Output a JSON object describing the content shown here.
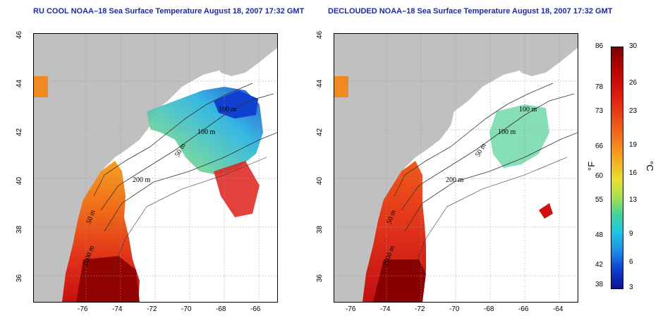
{
  "panels": {
    "left": {
      "title": "RU COOL NOAA–18 Sea Surface Temperature August 18, 2007 17:32 GMT",
      "contour_labels": [
        "100 m",
        "100 m",
        "50 m",
        "200 m",
        "50 m",
        "2000 m"
      ]
    },
    "right": {
      "title": "DECLOUDED NOAA–18 Sea Surface Temperature August 18, 2007 17:32 GMT",
      "contour_labels": [
        "100 m",
        "100 m",
        "50 m",
        "200 m",
        "50 m",
        "2000 m"
      ]
    }
  },
  "axes": {
    "x_ticks": [
      "-76",
      "-74",
      "-72",
      "-70",
      "-68",
      "-66",
      "-64"
    ],
    "y_ticks": [
      "46",
      "44",
      "42",
      "40",
      "38",
      "36"
    ]
  },
  "colorbar": {
    "fahrenheit_ticks": [
      "86",
      "78",
      "73",
      "66",
      "60",
      "55",
      "48",
      "42",
      "38"
    ],
    "celsius_ticks": [
      "30",
      "26",
      "23",
      "19",
      "16",
      "13",
      "9",
      "6",
      "3"
    ],
    "fahrenheit_unit": "°F",
    "celsius_unit": "°C"
  },
  "colors": {
    "land": "#c0c0c0",
    "ocean_nodata": "#ffffff",
    "title": "#1f2a9c",
    "warm": "#d01010",
    "hot": "#8a0000",
    "mid": "#f08020",
    "cool": "#60d0a0",
    "cold": "#1030c0"
  }
}
